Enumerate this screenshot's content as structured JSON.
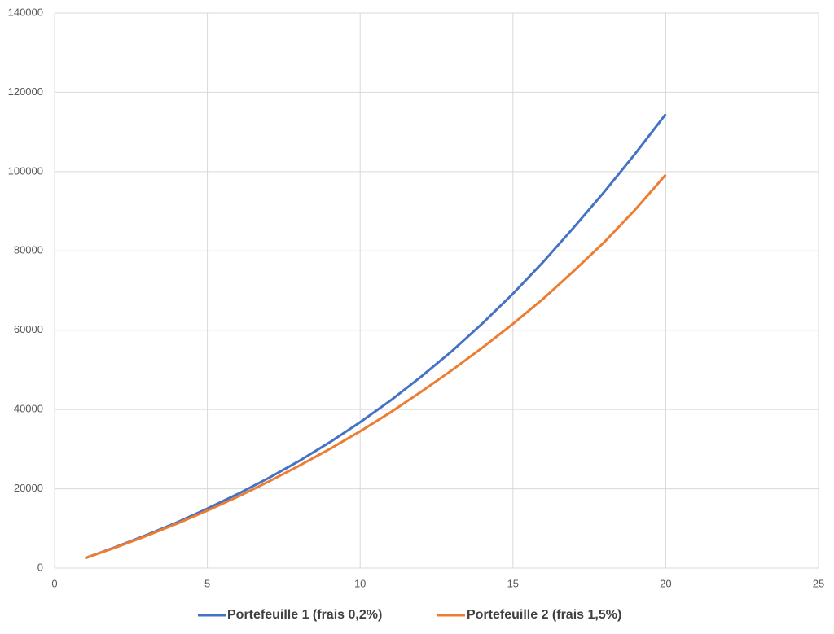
{
  "chart_data": {
    "type": "line",
    "x": [
      1,
      2,
      3,
      4,
      5,
      6,
      7,
      8,
      9,
      10,
      11,
      12,
      13,
      14,
      15,
      16,
      17,
      18,
      19,
      20
    ],
    "series": [
      {
        "name": "Portefeuille 1 (frais 0,2%)",
        "color": "#4472c4",
        "values": [
          2500,
          5300,
          8300,
          11500,
          15000,
          18700,
          22700,
          27000,
          31700,
          36800,
          42300,
          48300,
          54700,
          61700,
          69200,
          77300,
          86000,
          95000,
          104500,
          114500
        ]
      },
      {
        "name": "Portefeuille 2 (frais 1,5%)",
        "color": "#ed7d31",
        "values": [
          2500,
          5200,
          8100,
          11200,
          14500,
          18000,
          21800,
          25800,
          30000,
          34500,
          39300,
          44500,
          49900,
          55600,
          61600,
          68000,
          75000,
          82300,
          90400,
          99200
        ]
      }
    ],
    "xlim": [
      0,
      25
    ],
    "xticks": [
      0,
      5,
      10,
      15,
      20,
      25
    ],
    "ylim": [
      0,
      140000
    ],
    "yticks": [
      0,
      20000,
      40000,
      60000,
      80000,
      100000,
      120000,
      140000
    ],
    "grid": true,
    "legend": "bottom"
  }
}
